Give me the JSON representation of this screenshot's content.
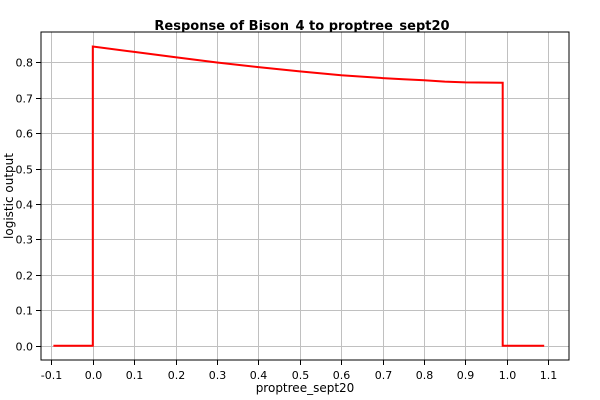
{
  "chart_data": {
    "type": "line",
    "title": "Response of Bison_4 to proptree_sept20",
    "xlabel": "proptree_sept20",
    "ylabel": "logistic output",
    "xlim": [
      -0.125,
      1.15
    ],
    "ylim": [
      -0.04,
      0.885
    ],
    "xticks": [
      -0.1,
      0.0,
      0.1,
      0.2,
      0.3,
      0.4,
      0.5,
      0.6,
      0.7,
      0.8,
      0.9,
      1.0,
      1.1
    ],
    "xtick_labels": [
      "-0.1",
      "0.0",
      "0.1",
      "0.2",
      "0.3",
      "0.4",
      "0.5",
      "0.6",
      "0.7",
      "0.8",
      "0.9",
      "1.0",
      "1.1"
    ],
    "yticks": [
      0.0,
      0.1,
      0.2,
      0.3,
      0.4,
      0.5,
      0.6,
      0.7,
      0.8
    ],
    "ytick_labels": [
      "0.0",
      "0.1",
      "0.2",
      "0.3",
      "0.4",
      "0.5",
      "0.6",
      "0.7",
      "0.8"
    ],
    "grid": true,
    "series": [
      {
        "color": "#ff0000",
        "x": [
          -0.095,
          0.0,
          0.0,
          0.1,
          0.2,
          0.3,
          0.4,
          0.5,
          0.6,
          0.7,
          0.75,
          0.8,
          0.85,
          0.9,
          0.99,
          0.99,
          1.09
        ],
        "y": [
          0.0,
          0.0,
          0.844,
          0.829,
          0.814,
          0.799,
          0.786,
          0.774,
          0.763,
          0.755,
          0.752,
          0.749,
          0.745,
          0.743,
          0.742,
          0.0,
          0.0
        ]
      }
    ],
    "colors": {
      "axes_bg": "#ffffff",
      "frame": "#000000",
      "grid": "#c0c0c0"
    }
  }
}
